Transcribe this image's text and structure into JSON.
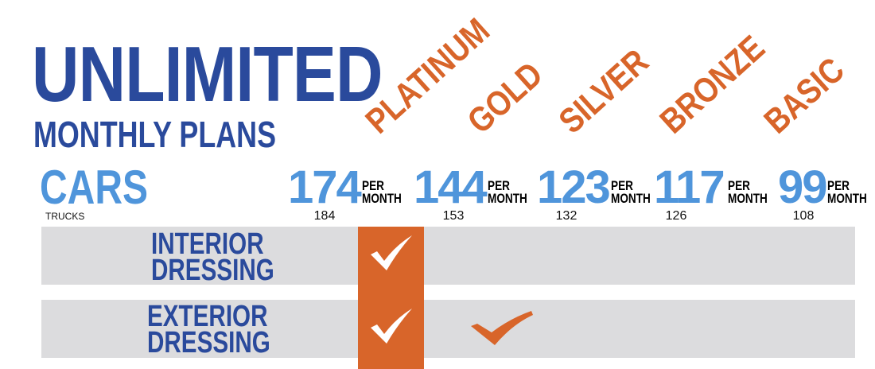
{
  "header": {
    "title": "UNLIMITED",
    "subtitle": "MONTHLY PLANS"
  },
  "plans": [
    {
      "name": "PLATINUM",
      "car_price": "174",
      "truck_price": "184"
    },
    {
      "name": "GOLD",
      "car_price": "144",
      "truck_price": "153"
    },
    {
      "name": "SILVER",
      "car_price": "123",
      "truck_price": "132"
    },
    {
      "name": "BRONZE",
      "car_price": "117",
      "truck_price": "126"
    },
    {
      "name": "BASIC",
      "car_price": "99",
      "truck_price": "108"
    }
  ],
  "labels": {
    "cars": "CARS",
    "trucks": "TRUCKS",
    "per": "PER",
    "month": "MONTH"
  },
  "features": [
    {
      "line1": "INTERIOR",
      "line2": "DRESSING",
      "included": [
        "PLATINUM"
      ]
    },
    {
      "line1": "EXTERIOR",
      "line2": "DRESSING",
      "included": [
        "PLATINUM",
        "GOLD"
      ]
    }
  ],
  "colors": {
    "dark_blue": "#2a4a9c",
    "light_blue": "#4f95db",
    "orange": "#d8652a",
    "row_gray": "#dcdcde"
  },
  "icons": [
    "checkmark-icon"
  ]
}
